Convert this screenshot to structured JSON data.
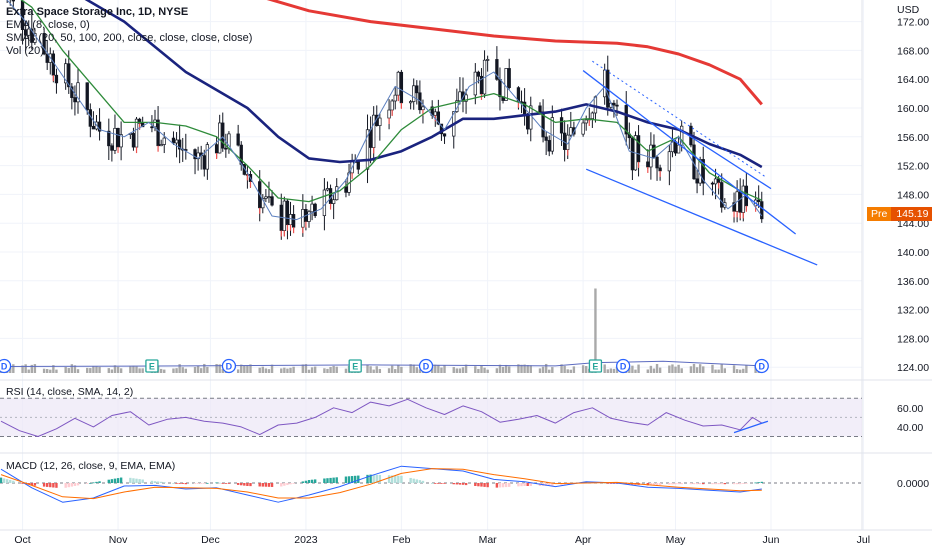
{
  "legend": {
    "title": "Extra Space Storage Inc, 1D, NYSE",
    "ema": "EMA (8, close, 0)",
    "smas": "SMAs (20, 50, 100, 200, close, close, close, close)",
    "vol": "Vol (20)"
  },
  "rsi_label": "RSI (14, close, SMA, 14, 2)",
  "macd_label": "MACD (12, 26, close, 9, EMA, EMA)",
  "price_tag": {
    "prefix": "Pre",
    "value": "145.19"
  },
  "currency": "USD",
  "colors": {
    "up": "#26a69a",
    "down": "#ef5350",
    "candle": "#131722",
    "ema8": "#5b7fbf",
    "sma20": "#2e8b3a",
    "sma50": "#1a237e",
    "sma200": "#e53935",
    "trend": "#2962ff",
    "rsi": "#7e57c2",
    "macd": "#2962ff",
    "signal": "#ff6d00"
  },
  "chart_data": {
    "type": "candlestick",
    "ticker": "Extra Space Storage Inc, 1D, NYSE",
    "price_axis": {
      "ticks": [
        124,
        128,
        132,
        136,
        140,
        144,
        148,
        152,
        156,
        160,
        164,
        168,
        172
      ],
      "tick_labels": [
        "124.00",
        "128.00",
        "132.00",
        "136.00",
        "140.00",
        "144.00",
        "148.00",
        "152.00",
        "156.00",
        "160.00",
        "164.00",
        "168.00",
        "172.00"
      ],
      "range": [
        122.5,
        175
      ],
      "label": "USD"
    },
    "time_axis": {
      "labels": [
        "Oct",
        "Nov",
        "Dec",
        "2023",
        "Feb",
        "Mar",
        "Apr",
        "May",
        "Jun",
        "Jul"
      ],
      "label_days": [
        7,
        38,
        68,
        99,
        130,
        158,
        189,
        219,
        250,
        280
      ]
    },
    "pre_market_price": 145.19,
    "trendlines": [
      {
        "name": "upper-wedge",
        "points": [
          [
            189,
            165.2
          ],
          [
            258,
            142.5
          ]
        ]
      },
      {
        "name": "lower-wedge",
        "points": [
          [
            190,
            151.5
          ],
          [
            265,
            138.2
          ]
        ]
      },
      {
        "name": "mid-channel",
        "points": [
          [
            216,
            158.2
          ],
          [
            250,
            148.8
          ]
        ]
      },
      {
        "name": "dotted-channel",
        "points": [
          [
            192,
            166.5
          ],
          [
            248,
            150.5
          ]
        ]
      }
    ],
    "sma_200": [
      [
        0,
        182
      ],
      [
        20,
        181
      ],
      [
        40,
        180
      ],
      [
        60,
        178
      ],
      [
        80,
        176
      ],
      [
        100,
        173.5
      ],
      [
        120,
        172
      ],
      [
        140,
        171
      ],
      [
        160,
        170
      ],
      [
        180,
        169.3
      ],
      [
        200,
        169
      ],
      [
        210,
        168.5
      ],
      [
        220,
        167.5
      ],
      [
        230,
        166
      ],
      [
        240,
        164
      ],
      [
        247,
        160.5
      ]
    ],
    "sma_50": [
      [
        0,
        180
      ],
      [
        20,
        177
      ],
      [
        40,
        172
      ],
      [
        60,
        165
      ],
      [
        80,
        160
      ],
      [
        90,
        156
      ],
      [
        100,
        153
      ],
      [
        110,
        152.5
      ],
      [
        120,
        152.8
      ],
      [
        130,
        154
      ],
      [
        140,
        156
      ],
      [
        150,
        158.5
      ],
      [
        160,
        158.5
      ],
      [
        170,
        159
      ],
      [
        180,
        159.5
      ],
      [
        190,
        160.5
      ],
      [
        200,
        159.5
      ],
      [
        210,
        158
      ],
      [
        220,
        157
      ],
      [
        230,
        155
      ],
      [
        240,
        153.5
      ],
      [
        247,
        151.8
      ]
    ],
    "sma_20": [
      [
        0,
        177
      ],
      [
        10,
        174
      ],
      [
        20,
        168
      ],
      [
        30,
        163
      ],
      [
        40,
        158
      ],
      [
        50,
        158
      ],
      [
        60,
        157.5
      ],
      [
        70,
        156
      ],
      [
        80,
        152
      ],
      [
        90,
        147.5
      ],
      [
        100,
        147
      ],
      [
        110,
        148.5
      ],
      [
        120,
        152
      ],
      [
        130,
        157
      ],
      [
        140,
        160
      ],
      [
        150,
        161
      ],
      [
        160,
        162
      ],
      [
        170,
        160.5
      ],
      [
        180,
        158
      ],
      [
        190,
        158.5
      ],
      [
        200,
        158
      ],
      [
        210,
        154
      ],
      [
        220,
        156
      ],
      [
        230,
        151
      ],
      [
        240,
        148.5
      ],
      [
        247,
        147.2
      ]
    ],
    "ema_8": [
      [
        0,
        176
      ],
      [
        8,
        172
      ],
      [
        16,
        167
      ],
      [
        24,
        162
      ],
      [
        32,
        157
      ],
      [
        40,
        156
      ],
      [
        48,
        158
      ],
      [
        56,
        155
      ],
      [
        64,
        153
      ],
      [
        72,
        156
      ],
      [
        80,
        151
      ],
      [
        88,
        145
      ],
      [
        96,
        144.5
      ],
      [
        104,
        146
      ],
      [
        112,
        150
      ],
      [
        120,
        157
      ],
      [
        128,
        163
      ],
      [
        136,
        161
      ],
      [
        144,
        157
      ],
      [
        152,
        163
      ],
      [
        160,
        165
      ],
      [
        168,
        161
      ],
      [
        176,
        157
      ],
      [
        184,
        155
      ],
      [
        190,
        160
      ],
      [
        196,
        163
      ],
      [
        204,
        154
      ],
      [
        212,
        153
      ],
      [
        220,
        156
      ],
      [
        228,
        150
      ],
      [
        236,
        146
      ],
      [
        242,
        148
      ],
      [
        247,
        145
      ]
    ],
    "volume_note": "Volume bars are rendered from a synthesized per-day series; a large spike occurs around day 193.",
    "rsi": {
      "ticks": [
        40,
        60
      ],
      "tick_labels": [
        "40.00",
        "60.00"
      ],
      "band": [
        30,
        70
      ],
      "values": [
        [
          0,
          46
        ],
        [
          6,
          36
        ],
        [
          12,
          30
        ],
        [
          18,
          38
        ],
        [
          24,
          49
        ],
        [
          30,
          40
        ],
        [
          36,
          52
        ],
        [
          42,
          56
        ],
        [
          48,
          42
        ],
        [
          54,
          48
        ],
        [
          60,
          50
        ],
        [
          66,
          46
        ],
        [
          72,
          44
        ],
        [
          78,
          40
        ],
        [
          84,
          32
        ],
        [
          90,
          42
        ],
        [
          96,
          44
        ],
        [
          102,
          50
        ],
        [
          108,
          60
        ],
        [
          114,
          55
        ],
        [
          120,
          66
        ],
        [
          126,
          62
        ],
        [
          132,
          69
        ],
        [
          138,
          60
        ],
        [
          144,
          53
        ],
        [
          150,
          62
        ],
        [
          156,
          56
        ],
        [
          162,
          45
        ],
        [
          168,
          48
        ],
        [
          174,
          52
        ],
        [
          180,
          44
        ],
        [
          186,
          55
        ],
        [
          192,
          60
        ],
        [
          198,
          49
        ],
        [
          204,
          45
        ],
        [
          210,
          42
        ],
        [
          216,
          55
        ],
        [
          222,
          47
        ],
        [
          228,
          41
        ],
        [
          234,
          42
        ],
        [
          240,
          37
        ],
        [
          244,
          50
        ],
        [
          247,
          44
        ]
      ],
      "trendline": [
        [
          238,
          34
        ],
        [
          249,
          46
        ]
      ]
    },
    "macd": {
      "ticks": [
        0
      ],
      "tick_labels": [
        "0.0000"
      ],
      "macd_line": [
        [
          0,
          2.3
        ],
        [
          10,
          -0.8
        ],
        [
          20,
          -3.2
        ],
        [
          30,
          -2.5
        ],
        [
          40,
          -0.5
        ],
        [
          50,
          -0.4
        ],
        [
          60,
          -1.0
        ],
        [
          70,
          -0.8
        ],
        [
          80,
          -2.0
        ],
        [
          90,
          -3.2
        ],
        [
          100,
          -2.0
        ],
        [
          110,
          -0.6
        ],
        [
          120,
          1.2
        ],
        [
          130,
          2.8
        ],
        [
          140,
          2.4
        ],
        [
          150,
          2.0
        ],
        [
          160,
          0.6
        ],
        [
          170,
          0.2
        ],
        [
          180,
          -0.6
        ],
        [
          190,
          0.2
        ],
        [
          200,
          0.0
        ],
        [
          210,
          -0.7
        ],
        [
          220,
          -0.9
        ],
        [
          230,
          -1.2
        ],
        [
          240,
          -1.5
        ],
        [
          247,
          -1.0
        ]
      ],
      "signal_line": [
        [
          0,
          1.4
        ],
        [
          10,
          -0.4
        ],
        [
          20,
          -2.3
        ],
        [
          30,
          -2.6
        ],
        [
          40,
          -1.5
        ],
        [
          50,
          -0.7
        ],
        [
          60,
          -0.8
        ],
        [
          70,
          -0.9
        ],
        [
          80,
          -1.5
        ],
        [
          90,
          -2.5
        ],
        [
          100,
          -2.5
        ],
        [
          110,
          -1.6
        ],
        [
          120,
          -0.2
        ],
        [
          130,
          1.6
        ],
        [
          140,
          2.4
        ],
        [
          150,
          2.3
        ],
        [
          160,
          1.4
        ],
        [
          170,
          0.7
        ],
        [
          180,
          -0.1
        ],
        [
          190,
          0.0
        ],
        [
          200,
          0.1
        ],
        [
          210,
          -0.3
        ],
        [
          220,
          -0.7
        ],
        [
          230,
          -1.0
        ],
        [
          240,
          -1.3
        ],
        [
          247,
          -1.2
        ]
      ]
    },
    "earnings_markers": [
      [
        49,
        "E"
      ],
      [
        115,
        "E"
      ],
      [
        193,
        "E"
      ]
    ],
    "dividend_markers": [
      [
        1,
        "D"
      ],
      [
        74,
        "D"
      ],
      [
        138,
        "D"
      ],
      [
        202,
        "D"
      ],
      [
        247,
        "D"
      ]
    ]
  }
}
